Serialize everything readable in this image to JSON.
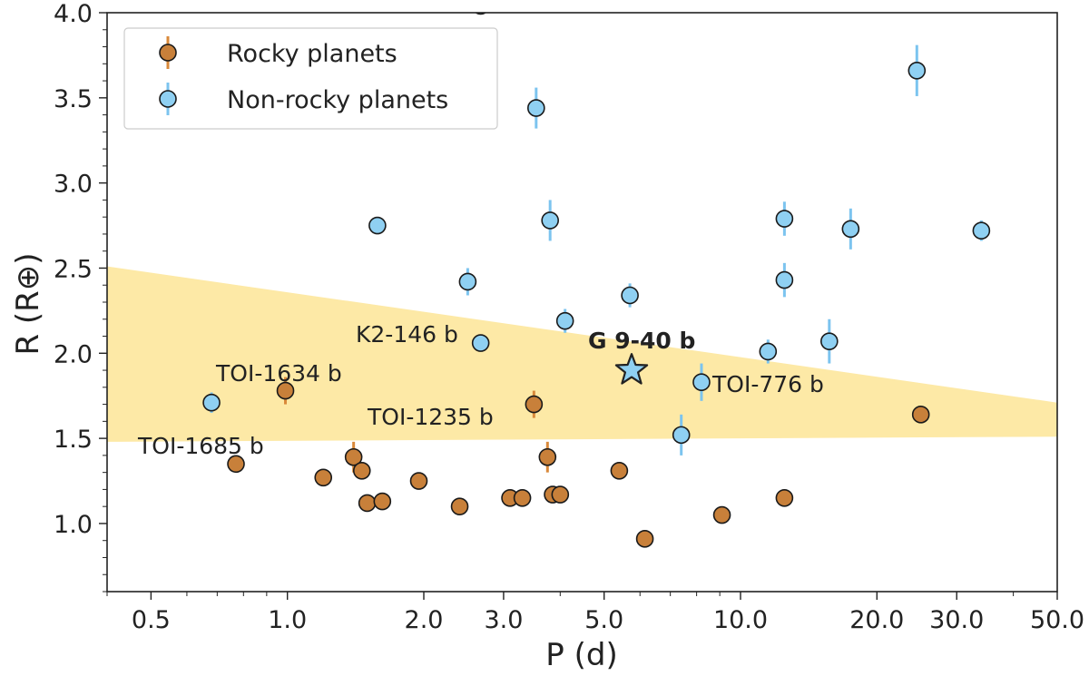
{
  "chart_data": {
    "type": "scatter",
    "xlabel": "P (d)",
    "ylabel": "R (R⊕)",
    "x_scale": "log",
    "xlim": [
      0.4,
      50.0
    ],
    "ylim": [
      0.6,
      4.0
    ],
    "x_ticks": [
      0.5,
      1.0,
      2.0,
      3.0,
      5.0,
      10.0,
      20.0,
      30.0,
      50.0
    ],
    "x_tick_labels": [
      "0.5",
      "1.0",
      "2.0",
      "3.0",
      "5.0",
      "10.0",
      "20.0",
      "30.0",
      "50.0"
    ],
    "y_ticks": [
      1.0,
      1.5,
      2.0,
      2.5,
      3.0,
      3.5,
      4.0
    ],
    "y_tick_labels": [
      "1.0",
      "1.5",
      "2.0",
      "2.5",
      "3.0",
      "3.5",
      "4.0"
    ],
    "grid": false,
    "legend_position": "top-left",
    "colors": {
      "rocky": "#c8803a",
      "rocky_err": "#d9893a",
      "nonrocky": "#8fd0f2",
      "nonrocky_err": "#7cc4ef",
      "band": "#fde9a6",
      "star": "#8fd0f2",
      "marker_edge": "#1a1a1a"
    },
    "radius_valley_band": {
      "upper": [
        [
          0.4,
          2.51
        ],
        [
          50.0,
          1.71
        ]
      ],
      "lower": [
        [
          0.4,
          1.48
        ],
        [
          50.0,
          1.51
        ]
      ]
    },
    "series": [
      {
        "name": "Rocky planets",
        "points": [
          {
            "x": 0.77,
            "y": 1.35,
            "err": 0.02
          },
          {
            "x": 0.99,
            "y": 1.78,
            "err": 0.08
          },
          {
            "x": 1.2,
            "y": 1.27,
            "err": 0.02
          },
          {
            "x": 1.4,
            "y": 1.39,
            "err": 0.09
          },
          {
            "x": 1.46,
            "y": 1.31,
            "err": 0.04
          },
          {
            "x": 1.5,
            "y": 1.12,
            "err": 0.02
          },
          {
            "x": 1.62,
            "y": 1.13,
            "err": 0.02
          },
          {
            "x": 1.95,
            "y": 1.25,
            "err": 0.03
          },
          {
            "x": 2.4,
            "y": 1.1,
            "err": 0.02
          },
          {
            "x": 3.1,
            "y": 1.15,
            "err": 0.02
          },
          {
            "x": 3.3,
            "y": 1.15,
            "err": 0.02
          },
          {
            "x": 3.5,
            "y": 1.7,
            "err": 0.08
          },
          {
            "x": 3.75,
            "y": 1.39,
            "err": 0.09
          },
          {
            "x": 3.85,
            "y": 1.17,
            "err": 0.03
          },
          {
            "x": 4.0,
            "y": 1.17,
            "err": 0.03
          },
          {
            "x": 5.4,
            "y": 1.31,
            "err": 0.05
          },
          {
            "x": 6.15,
            "y": 0.91,
            "err": 0.02
          },
          {
            "x": 9.1,
            "y": 1.05,
            "err": 0.02
          },
          {
            "x": 12.5,
            "y": 1.15,
            "err": 0.02
          },
          {
            "x": 25.0,
            "y": 1.64,
            "err": 0.02
          }
        ]
      },
      {
        "name": "Non-rocky planets",
        "points": [
          {
            "x": 0.68,
            "y": 1.71,
            "err": 0.06
          },
          {
            "x": 1.58,
            "y": 2.75,
            "err": 0.02
          },
          {
            "x": 2.5,
            "y": 2.42,
            "err": 0.08
          },
          {
            "x": 2.67,
            "y": 2.06,
            "err": 0.03
          },
          {
            "x": 2.67,
            "y": 4.04,
            "err": 0.05
          },
          {
            "x": 3.54,
            "y": 3.44,
            "err": 0.12
          },
          {
            "x": 3.8,
            "y": 2.78,
            "err": 0.12
          },
          {
            "x": 4.1,
            "y": 2.19,
            "err": 0.07
          },
          {
            "x": 5.7,
            "y": 2.34,
            "err": 0.07
          },
          {
            "x": 7.4,
            "y": 1.52,
            "err": 0.12
          },
          {
            "x": 8.2,
            "y": 1.83,
            "err": 0.11
          },
          {
            "x": 11.5,
            "y": 2.01,
            "err": 0.07
          },
          {
            "x": 12.5,
            "y": 2.43,
            "err": 0.1
          },
          {
            "x": 12.5,
            "y": 2.79,
            "err": 0.1
          },
          {
            "x": 15.7,
            "y": 2.07,
            "err": 0.13
          },
          {
            "x": 17.5,
            "y": 2.73,
            "err": 0.12
          },
          {
            "x": 24.5,
            "y": 3.66,
            "err": 0.15
          },
          {
            "x": 34.0,
            "y": 2.72,
            "err": 0.06
          }
        ]
      }
    ],
    "highlight": {
      "label": "G 9-40 b",
      "x": 5.75,
      "y": 1.9,
      "marker": "star"
    },
    "annotations": [
      {
        "text": "K2-146 b"
      },
      {
        "text": "TOI-1634 b"
      },
      {
        "text": "TOI-1235 b"
      },
      {
        "text": "TOI-776 b"
      },
      {
        "text": "TOI-1685 b"
      }
    ]
  }
}
